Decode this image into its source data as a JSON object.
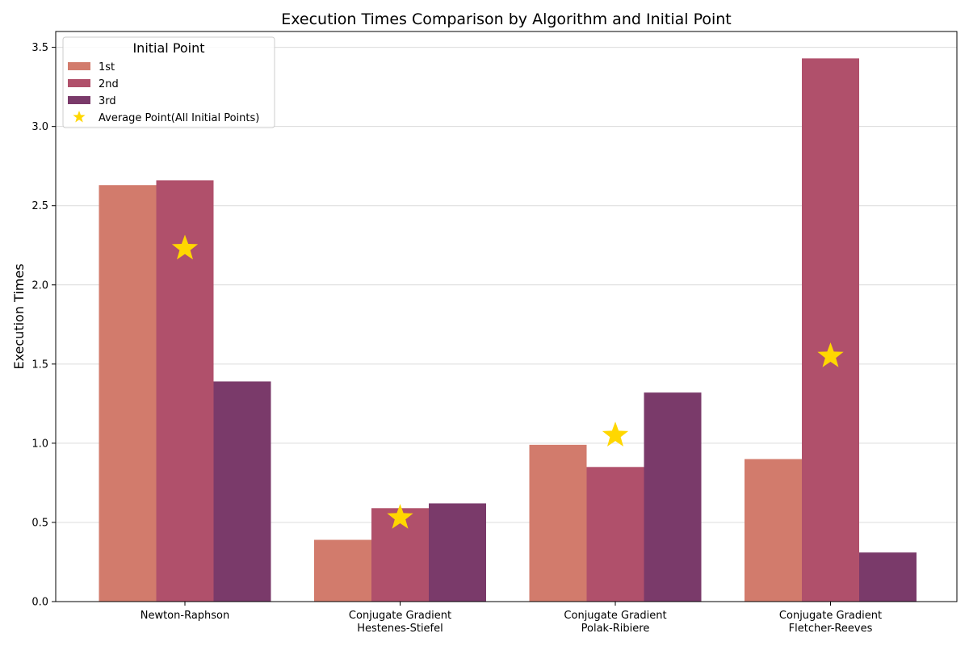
{
  "chart_data": {
    "type": "bar",
    "title": "Execution Times Comparison by Algorithm and Initial Point",
    "xlabel": "",
    "ylabel": "Execution Times",
    "ylim": [
      0,
      3.6
    ],
    "yticks": [
      0.0,
      0.5,
      1.0,
      1.5,
      2.0,
      2.5,
      3.0,
      3.5
    ],
    "ytick_labels": [
      "0.0",
      "0.5",
      "1.0",
      "1.5",
      "2.0",
      "2.5",
      "3.0",
      "3.5"
    ],
    "grid": "horizontal",
    "categories": [
      [
        "Newton-Raphson"
      ],
      [
        "Conjugate Gradient",
        "Hestenes-Stiefel"
      ],
      [
        "Conjugate Gradient",
        "Polak-Ribiere"
      ],
      [
        "Conjugate Gradient",
        "Fletcher-Reeves"
      ]
    ],
    "series": [
      {
        "name": "1st",
        "color": "#d27b6c",
        "values": [
          2.63,
          0.39,
          0.99,
          0.9
        ]
      },
      {
        "name": "2nd",
        "color": "#b0506b",
        "values": [
          2.66,
          0.59,
          0.85,
          3.43
        ]
      },
      {
        "name": "3rd",
        "color": "#7a3a6a",
        "values": [
          1.39,
          0.62,
          1.32,
          0.31
        ]
      }
    ],
    "average_marker": {
      "name": "Average Point(All Initial Points)",
      "color": "#ffd700",
      "values": [
        2.23,
        0.53,
        1.05,
        1.55
      ]
    },
    "legend": {
      "title": "Initial Point",
      "placement": "top-left"
    }
  }
}
